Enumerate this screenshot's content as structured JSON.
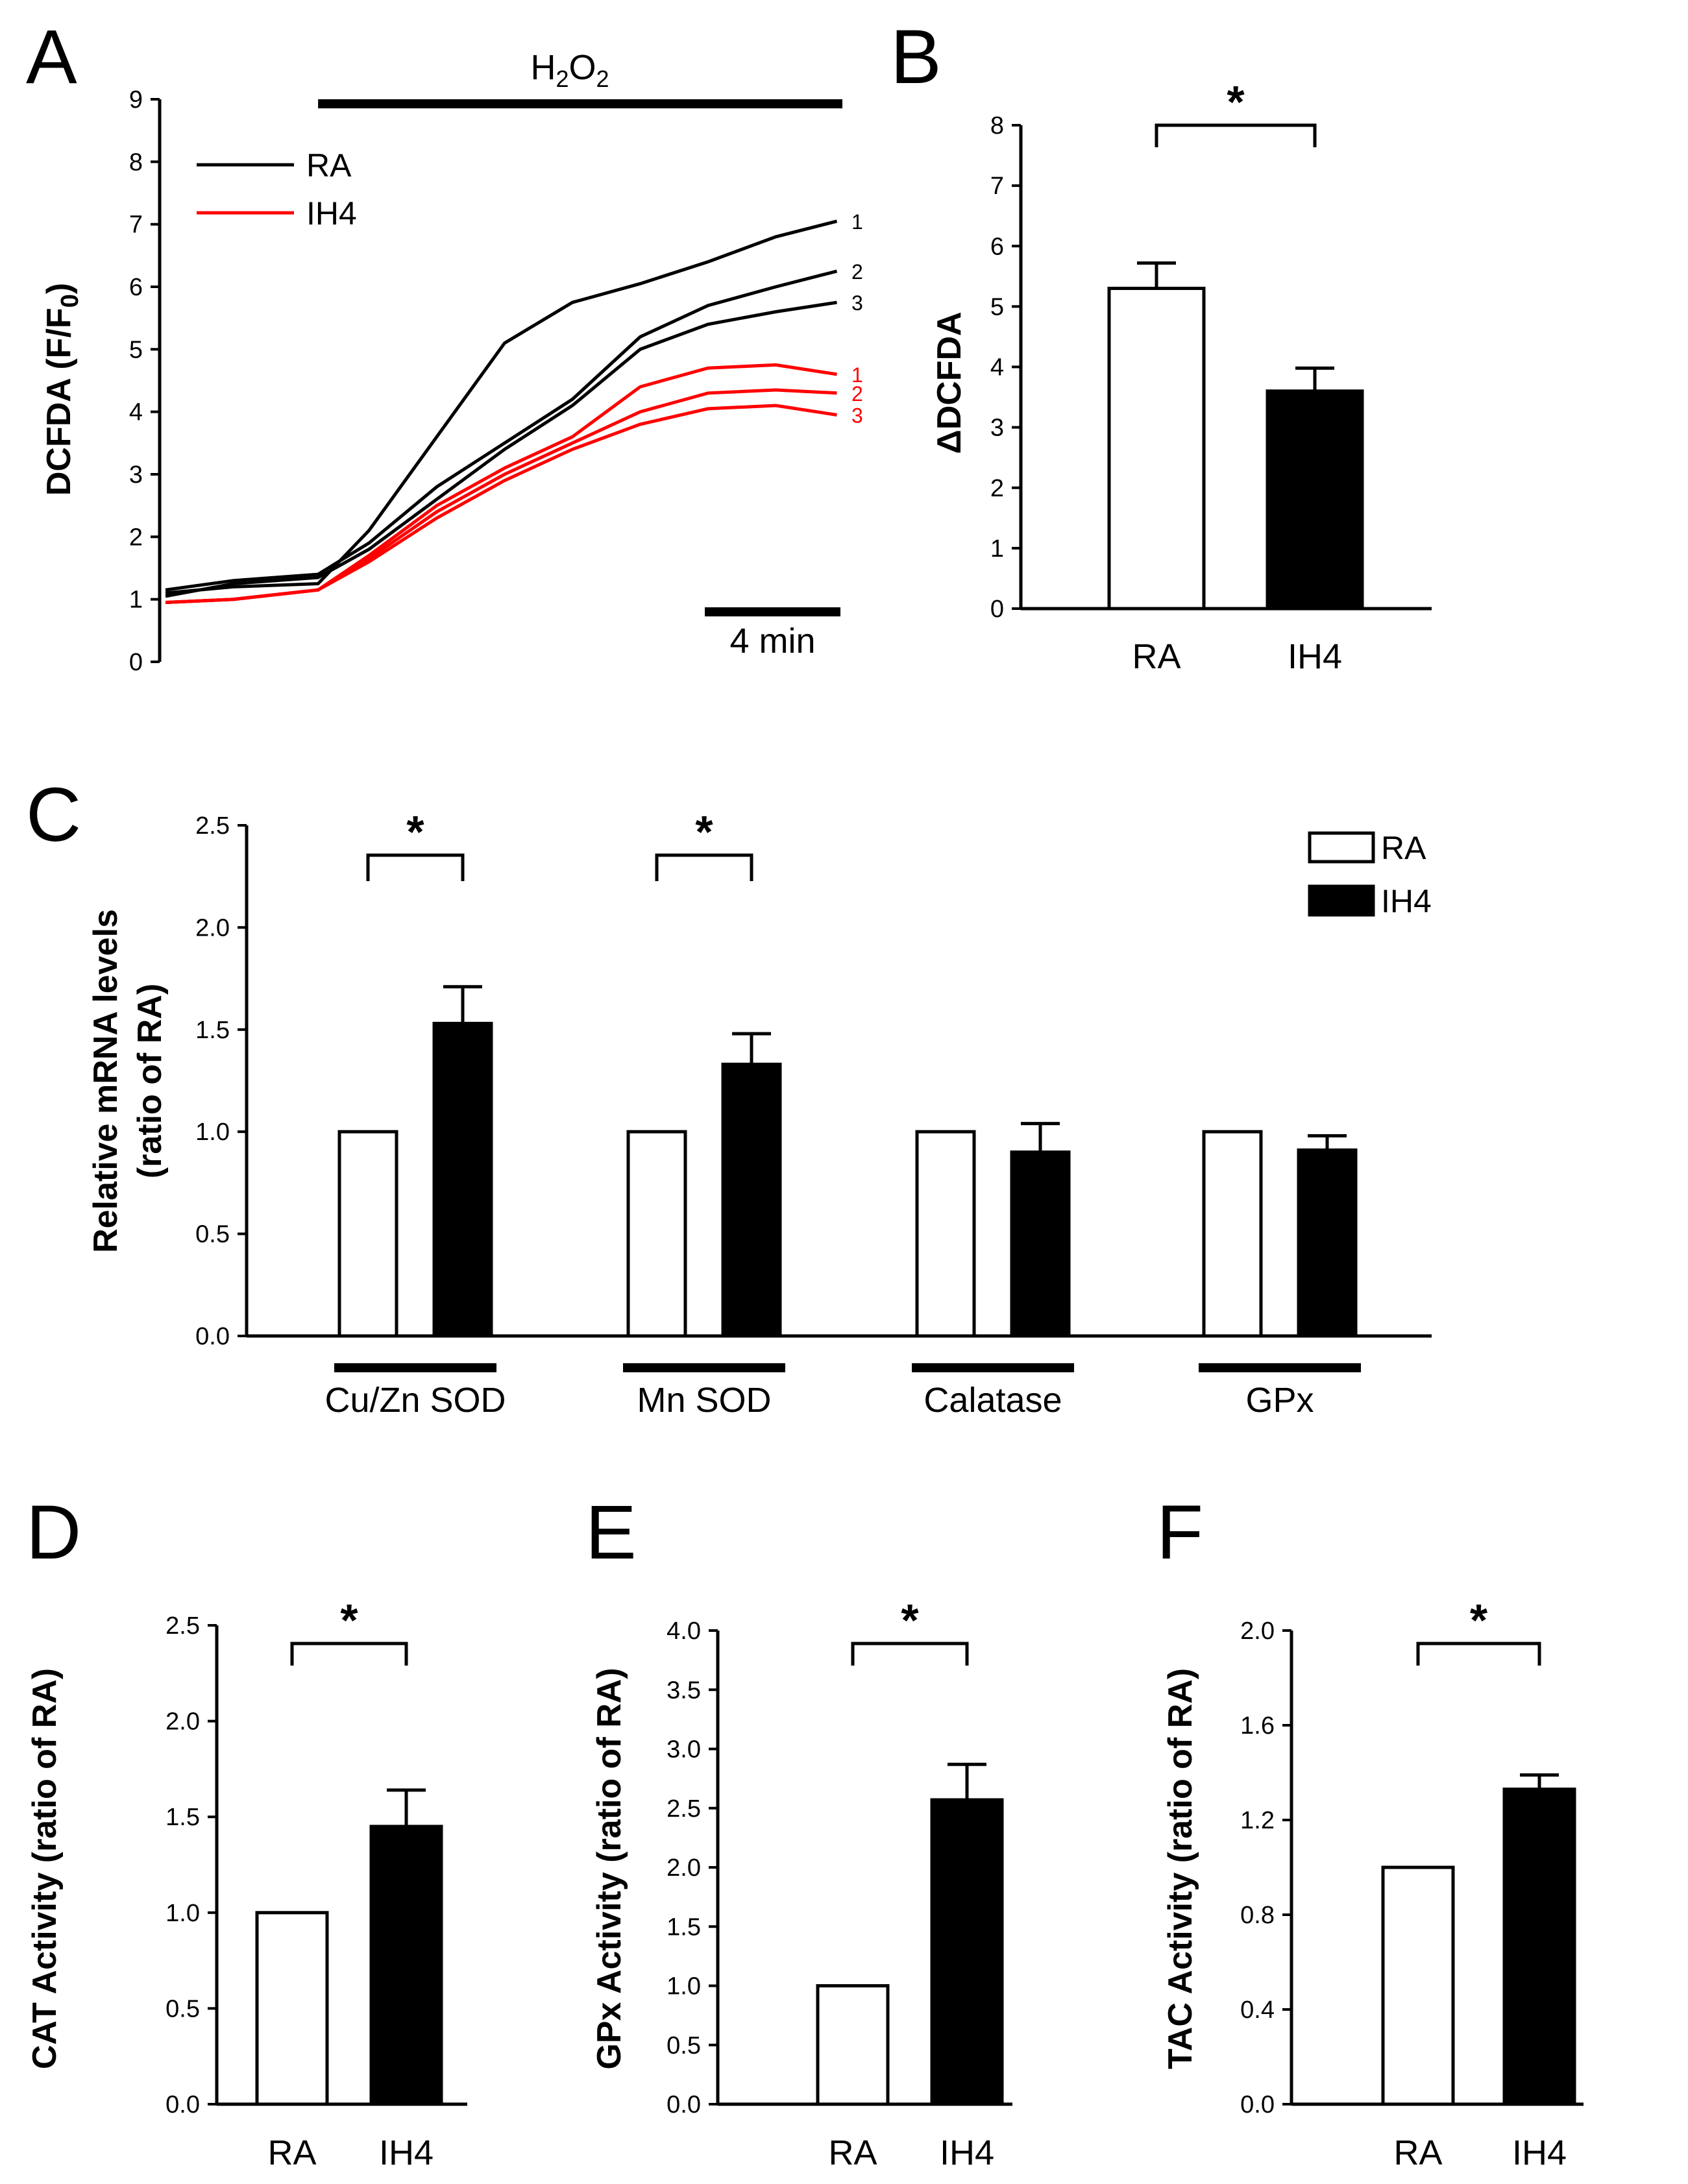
{
  "chart_data": [
    {
      "panel": "A",
      "type": "line",
      "ylabel": "DCFDA (F/F",
      "ylabel_sub": "0",
      "ylabel_end": ")",
      "ylim": [
        0,
        9
      ],
      "yticks": [
        "0",
        "1",
        "2",
        "3",
        "4",
        "5",
        "6",
        "7",
        "8",
        "9"
      ],
      "treatment_label": "H",
      "treatment_sub1": "2",
      "treatment_mid": "O",
      "treatment_sub2": "2",
      "treatment_start_min": 4.5,
      "xlim_min": [
        0,
        20
      ],
      "scale_bar_label": "4 min",
      "scale_bar_min": 4,
      "legend": [
        {
          "name": "RA",
          "color": "#000000"
        },
        {
          "name": "IH4",
          "color": "#ff0000"
        }
      ],
      "series": [
        {
          "group": "RA",
          "label": "1",
          "color": "#000000",
          "t": [
            0,
            2,
            4.5,
            6,
            8,
            10,
            12,
            14,
            16,
            18,
            19.8
          ],
          "y": [
            1.1,
            1.2,
            1.25,
            2.1,
            3.6,
            5.1,
            5.75,
            6.05,
            6.4,
            6.8,
            7.05
          ]
        },
        {
          "group": "RA",
          "label": "2",
          "color": "#000000",
          "t": [
            0,
            2,
            4.5,
            6,
            8,
            10,
            12,
            14,
            16,
            18,
            19.8
          ],
          "y": [
            1.15,
            1.3,
            1.4,
            1.9,
            2.8,
            3.5,
            4.2,
            5.2,
            5.7,
            6.0,
            6.25
          ]
        },
        {
          "group": "RA",
          "label": "3",
          "color": "#000000",
          "t": [
            0,
            2,
            4.5,
            6,
            8,
            10,
            12,
            14,
            16,
            18,
            19.8
          ],
          "y": [
            1.05,
            1.25,
            1.35,
            1.8,
            2.6,
            3.4,
            4.1,
            5.0,
            5.4,
            5.6,
            5.75
          ]
        },
        {
          "group": "IH4",
          "label": "1",
          "color": "#ff0000",
          "t": [
            0,
            2,
            4.5,
            6,
            8,
            10,
            12,
            14,
            16,
            18,
            19.8
          ],
          "y": [
            0.95,
            1.0,
            1.15,
            1.7,
            2.5,
            3.1,
            3.6,
            4.4,
            4.7,
            4.75,
            4.6
          ]
        },
        {
          "group": "IH4",
          "label": "2",
          "color": "#ff0000",
          "t": [
            0,
            2,
            4.5,
            6,
            8,
            10,
            12,
            14,
            16,
            18,
            19.8
          ],
          "y": [
            0.95,
            1.0,
            1.15,
            1.65,
            2.4,
            3.0,
            3.5,
            4.0,
            4.3,
            4.35,
            4.3
          ]
        },
        {
          "group": "IH4",
          "label": "3",
          "color": "#ff0000",
          "t": [
            0,
            2,
            4.5,
            6,
            8,
            10,
            12,
            14,
            16,
            18,
            19.8
          ],
          "y": [
            0.95,
            1.0,
            1.15,
            1.6,
            2.3,
            2.9,
            3.4,
            3.8,
            4.05,
            4.1,
            3.95
          ]
        }
      ]
    },
    {
      "panel": "B",
      "type": "bar",
      "ylabel": "ΔDCFDA",
      "ylim": [
        0,
        8
      ],
      "yticks": [
        "0",
        "1",
        "2",
        "3",
        "4",
        "5",
        "6",
        "7",
        "8"
      ],
      "categories": [
        "RA",
        "IH4"
      ],
      "values": [
        5.3,
        3.6
      ],
      "errors": [
        0.42,
        0.38
      ],
      "fills": [
        "#ffffff",
        "#000000"
      ],
      "significance": "*"
    },
    {
      "panel": "C",
      "type": "bar",
      "ylabel_line1": "Relative mRNA levels",
      "ylabel_line2": "(ratio of RA)",
      "ylim": [
        0,
        2.5
      ],
      "yticks": [
        "0.0",
        "0.5",
        "1.0",
        "1.5",
        "2.0",
        "2.5"
      ],
      "categories": [
        "Cu/Zn SOD",
        "Mn SOD",
        "Calatase",
        "GPx"
      ],
      "legend": [
        {
          "name": "RA",
          "fill": "#ffffff"
        },
        {
          "name": "IH4",
          "fill": "#000000"
        }
      ],
      "series": [
        {
          "name": "RA",
          "values": [
            1.0,
            1.0,
            1.0,
            1.0
          ],
          "errors": [
            0,
            0,
            0,
            0
          ]
        },
        {
          "name": "IH4",
          "values": [
            1.53,
            1.33,
            0.9,
            0.91
          ],
          "errors": [
            0.18,
            0.15,
            0.14,
            0.07
          ]
        }
      ],
      "significance": [
        "*",
        "*",
        "",
        ""
      ]
    },
    {
      "panel": "D",
      "type": "bar",
      "ylabel": "CAT Activity (ratio of RA)",
      "ylim": [
        0,
        2.5
      ],
      "yticks": [
        "0.0",
        "0.5",
        "1.0",
        "1.5",
        "2.0",
        "2.5"
      ],
      "categories": [
        "RA",
        "IH4"
      ],
      "values": [
        1.0,
        1.45
      ],
      "errors": [
        0,
        0.19
      ],
      "fills": [
        "#ffffff",
        "#000000"
      ],
      "significance": "*"
    },
    {
      "panel": "E",
      "type": "bar",
      "ylabel": "GPx Activity (ratio of RA)",
      "ylim": [
        0,
        4.0
      ],
      "yticks": [
        "0.0",
        "0.5",
        "1.0",
        "1.5",
        "2.0",
        "2.5",
        "3.0",
        "3.5",
        "4.0"
      ],
      "categories": [
        "RA",
        "IH4"
      ],
      "values": [
        1.0,
        2.57
      ],
      "errors": [
        0,
        0.3
      ],
      "fills": [
        "#ffffff",
        "#000000"
      ],
      "significance": "*"
    },
    {
      "panel": "F",
      "type": "bar",
      "ylabel": "TAC Activity (ratio of RA)",
      "ylim": [
        0,
        2.0
      ],
      "yticks": [
        "0.0",
        "0.4",
        "0.8",
        "1.2",
        "1.6",
        "2.0"
      ],
      "categories": [
        "RA",
        "IH4"
      ],
      "values": [
        1.0,
        1.33
      ],
      "errors": [
        0,
        0.06
      ],
      "fills": [
        "#ffffff",
        "#000000"
      ],
      "significance": "*"
    }
  ]
}
